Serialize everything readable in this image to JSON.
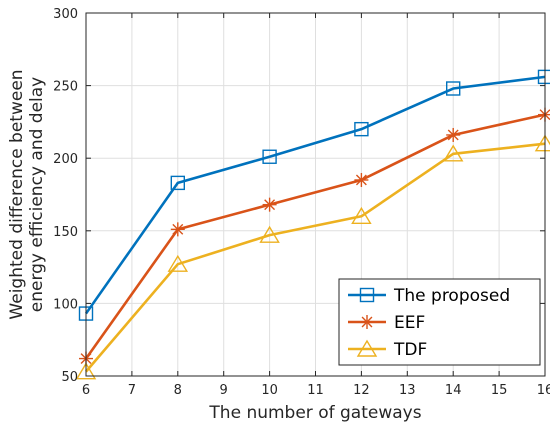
{
  "chart_data": {
    "type": "line",
    "xlabel": "The number of gateways",
    "ylabel_lines": [
      "Weighted difference between",
      "energy efficiency and delay"
    ],
    "xlim": [
      6,
      16
    ],
    "ylim": [
      50,
      300
    ],
    "xticks": [
      6,
      7,
      8,
      9,
      10,
      11,
      12,
      13,
      14,
      15,
      16
    ],
    "yticks": [
      50,
      100,
      150,
      200,
      250,
      300
    ],
    "grid": true,
    "legend_position": "bottom-right",
    "x": [
      6,
      8,
      10,
      12,
      14,
      16
    ],
    "series": [
      {
        "name": "The proposed",
        "marker": "square",
        "color": "#0072BD",
        "values": [
          93,
          183,
          201,
          220,
          248,
          256
        ]
      },
      {
        "name": "EEF",
        "marker": "asterisk",
        "color": "#D95319",
        "values": [
          62,
          151,
          168,
          185,
          216,
          230
        ]
      },
      {
        "name": "TDF",
        "marker": "triangle",
        "color": "#EDB120",
        "values": [
          53,
          127,
          147,
          160,
          203,
          210
        ]
      }
    ]
  }
}
